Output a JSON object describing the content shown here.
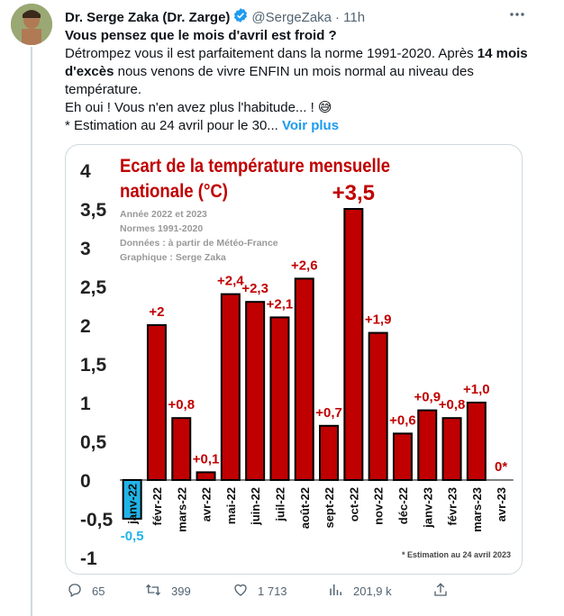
{
  "tweet": {
    "author_name": "Dr. Serge Zaka (Dr. Zarge)",
    "handle": "@SergeZaka",
    "time": "· 11h",
    "line1": "Vous pensez que le mois d'avril est froid ?",
    "line2a": "Détrompez vous il est parfaitement dans la norme 1991-2020. Après ",
    "line2b": "14 mois d'excès",
    "line2c": " nous venons de vivre ENFIN un mois normal au niveau des température.",
    "line3": "Eh oui ! Vous n'en avez plus l'habitude... ! 😅",
    "line4": "* Estimation au 24 avril pour le 30...",
    "voir_plus": "Voir plus"
  },
  "actions": {
    "replies": "65",
    "retweets": "399",
    "likes": "1 713",
    "views": "201,9 k"
  },
  "chart_data": {
    "type": "bar",
    "title_line1": "Ecart de la température mensuelle",
    "title_line2": "nationale (°C)",
    "notes": [
      "Année 2022 et 2023",
      "Normes 1991-2020",
      "Données : à partir de Météo-France",
      "Graphique : Serge Zaka"
    ],
    "footnote": "* Estimation au 24 avril 2023",
    "categories": [
      "janv-22",
      "févr-22",
      "mars-22",
      "avr-22",
      "mai-22",
      "juin-22",
      "juil-22",
      "août-22",
      "sept-22",
      "oct-22",
      "nov-22",
      "déc-22",
      "janv-23",
      "févr-23",
      "mars-23",
      "avr-23"
    ],
    "values": [
      -0.5,
      2,
      0.8,
      0.1,
      2.4,
      2.3,
      2.1,
      2.6,
      0.7,
      3.5,
      1.9,
      0.6,
      0.9,
      0.8,
      1.0,
      0
    ],
    "labels": [
      "-0,5",
      "+2",
      "+0,8",
      "+0,1",
      "+2,4",
      "+2,3",
      "+2,1",
      "+2,6",
      "+0,7",
      "+3,5",
      "+1,9",
      "+0,6",
      "+0,9",
      "+0,8",
      "+1,0",
      "0*"
    ],
    "yticks": [
      "4",
      "3,5",
      "3",
      "2,5",
      "2",
      "1,5",
      "1",
      "0,5",
      "0",
      "-0,5",
      "-1"
    ],
    "ylim": [
      -1,
      4
    ],
    "colors": {
      "positive": "#c00000",
      "negative": "#1fb4e8",
      "title": "#c00000"
    }
  }
}
